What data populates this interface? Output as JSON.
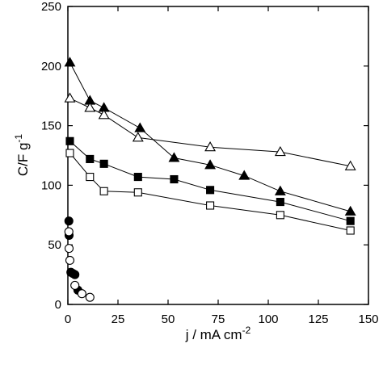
{
  "chart_data": {
    "type": "scatter",
    "title": "",
    "xlabel": "j / mA cm",
    "xlabel_superscript": "-2",
    "ylabel": "C/F g",
    "ylabel_superscript": "-1",
    "xlim": [
      0,
      150
    ],
    "ylim": [
      0,
      250
    ],
    "xticks": [
      0,
      25,
      50,
      75,
      100,
      125,
      150
    ],
    "yticks": [
      0,
      50,
      100,
      150,
      200,
      250
    ],
    "grid": false,
    "legend": "none",
    "series": [
      {
        "marker": "triangle-filled",
        "line": true,
        "x": [
          1,
          11,
          18,
          36,
          53,
          71,
          88,
          106,
          141
        ],
        "y": [
          203,
          171,
          165,
          148,
          123,
          117,
          108,
          95,
          78
        ]
      },
      {
        "marker": "triangle-open",
        "line": true,
        "x": [
          1,
          11,
          18,
          35,
          71,
          106,
          141
        ],
        "y": [
          173,
          165,
          159,
          140,
          132,
          128,
          116
        ]
      },
      {
        "marker": "square-filled",
        "line": true,
        "x": [
          1,
          11,
          18,
          35,
          53,
          71,
          106,
          141
        ],
        "y": [
          137,
          122,
          118,
          107,
          105,
          96,
          86,
          70
        ]
      },
      {
        "marker": "square-open",
        "line": true,
        "x": [
          1,
          11,
          18,
          35,
          71,
          106,
          141
        ],
        "y": [
          127,
          107,
          95,
          94,
          83,
          75,
          62
        ]
      },
      {
        "marker": "circle-filled",
        "line": false,
        "x": [
          0.5,
          0.6,
          1.5,
          2.5,
          3.5,
          5
        ],
        "y": [
          70,
          58,
          27,
          26,
          25,
          12
        ]
      },
      {
        "marker": "circle-open",
        "line": false,
        "x": [
          0.5,
          0.6,
          1,
          3.5,
          7,
          11
        ],
        "y": [
          61,
          47,
          37,
          16,
          9,
          6
        ]
      }
    ]
  }
}
